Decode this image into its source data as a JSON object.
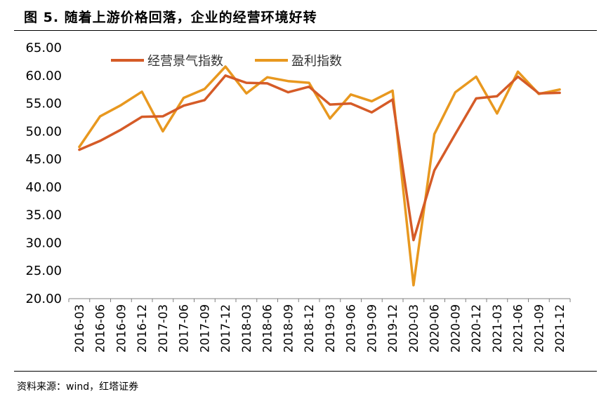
{
  "figure": {
    "title": "图 5. 随着上游价格回落，企业的经营环境好转",
    "source": "资料来源：wind，红塔证券"
  },
  "chart_data": {
    "type": "line",
    "categories": [
      "2016-03",
      "2016-06",
      "2016-09",
      "2016-12",
      "2017-03",
      "2017-06",
      "2017-09",
      "2017-12",
      "2018-03",
      "2018-06",
      "2018-09",
      "2018-12",
      "2019-03",
      "2019-06",
      "2019-09",
      "2019-12",
      "2020-03",
      "2020-06",
      "2020-09",
      "2020-12",
      "2021-03",
      "2021-06",
      "2021-09",
      "2021-12"
    ],
    "series": [
      {
        "name": "经营景气指数",
        "color": "#D55B27",
        "values": [
          46.7,
          48.3,
          50.3,
          52.6,
          52.7,
          54.6,
          55.6,
          60.0,
          58.7,
          58.6,
          57.0,
          58.0,
          54.8,
          55.0,
          53.4,
          55.7,
          30.5,
          43.0,
          49.5,
          55.9,
          56.3,
          59.8,
          56.8,
          56.9
        ]
      },
      {
        "name": "盈利指数",
        "color": "#E8981F",
        "values": [
          47.2,
          52.7,
          54.7,
          57.1,
          50.0,
          56.0,
          57.6,
          61.6,
          56.8,
          59.7,
          59.0,
          58.7,
          52.3,
          56.6,
          55.4,
          57.3,
          22.4,
          49.5,
          57.0,
          59.8,
          53.2,
          60.7,
          56.7,
          57.5
        ]
      }
    ],
    "yticks": [
      "65.00",
      "60.00",
      "55.00",
      "50.00",
      "45.00",
      "40.00",
      "35.00",
      "30.00",
      "25.00",
      "20.00"
    ],
    "ylim": [
      20,
      65
    ],
    "grid": false,
    "legend": "top-left"
  }
}
